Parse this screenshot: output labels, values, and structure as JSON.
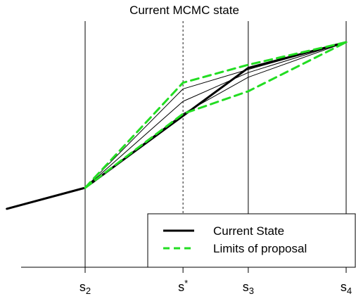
{
  "chart_data": {
    "type": "line",
    "title": "Current MCMC state",
    "xlabel": "",
    "ylabel": "",
    "grid": false,
    "legend_position": "bottom-right",
    "xlim": [
      -1.8,
      3.2
    ],
    "ylim": [
      -1.3,
      2.6
    ],
    "vertical_lines": [
      {
        "x": 0,
        "style": "solid"
      },
      {
        "x": 1.5,
        "style": "dotted"
      },
      {
        "x": 2.5,
        "style": "solid"
      },
      {
        "x": 4,
        "style": "solid"
      }
    ],
    "x_ticks": [
      {
        "x": 0,
        "base": "s",
        "sub": "2",
        "sup": ""
      },
      {
        "x": 1.5,
        "base": "s",
        "sub": "",
        "sup": "*"
      },
      {
        "x": 2.5,
        "base": "s",
        "sub": "3",
        "sup": ""
      },
      {
        "x": 4,
        "base": "s",
        "sub": "4",
        "sup": ""
      }
    ],
    "series": [
      {
        "name": "Current State",
        "style": "thick-solid",
        "color": "#000000",
        "points": [
          [
            -1.2,
            -0.27
          ],
          [
            0,
            0
          ],
          [
            2.5,
            1.54
          ],
          [
            4,
            1.87
          ]
        ]
      },
      {
        "name": "",
        "style": "thin-solid",
        "color": "#000000",
        "points": [
          [
            0,
            0
          ],
          [
            1.5,
            0.95
          ],
          [
            2.5,
            1.42
          ],
          [
            4,
            1.87
          ]
        ]
      },
      {
        "name": "",
        "style": "thin-solid",
        "color": "#000000",
        "points": [
          [
            0,
            0
          ],
          [
            1.5,
            1.11
          ],
          [
            2.5,
            1.48
          ],
          [
            4,
            1.87
          ]
        ]
      },
      {
        "name": "",
        "style": "thin-solid",
        "color": "#000000",
        "points": [
          [
            0,
            0
          ],
          [
            1.5,
            1.27
          ],
          [
            2.5,
            1.52
          ],
          [
            4,
            1.87
          ]
        ]
      },
      {
        "name": "Limits of proposal",
        "style": "dashed",
        "color": "#22dd22",
        "points": [
          [
            0,
            0
          ],
          [
            1.5,
            1.35
          ],
          [
            2.5,
            1.58
          ],
          [
            4,
            1.87
          ]
        ]
      },
      {
        "name": "",
        "style": "dashed",
        "color": "#22dd22",
        "points": [
          [
            0,
            0
          ],
          [
            1.5,
            0.95
          ],
          [
            2.5,
            1.24
          ],
          [
            4,
            1.87
          ]
        ]
      }
    ],
    "legend": [
      {
        "label": "Current State",
        "style": "solid",
        "color": "#000000"
      },
      {
        "label": "Limits of proposal",
        "style": "dashed",
        "color": "#22dd22"
      }
    ]
  }
}
